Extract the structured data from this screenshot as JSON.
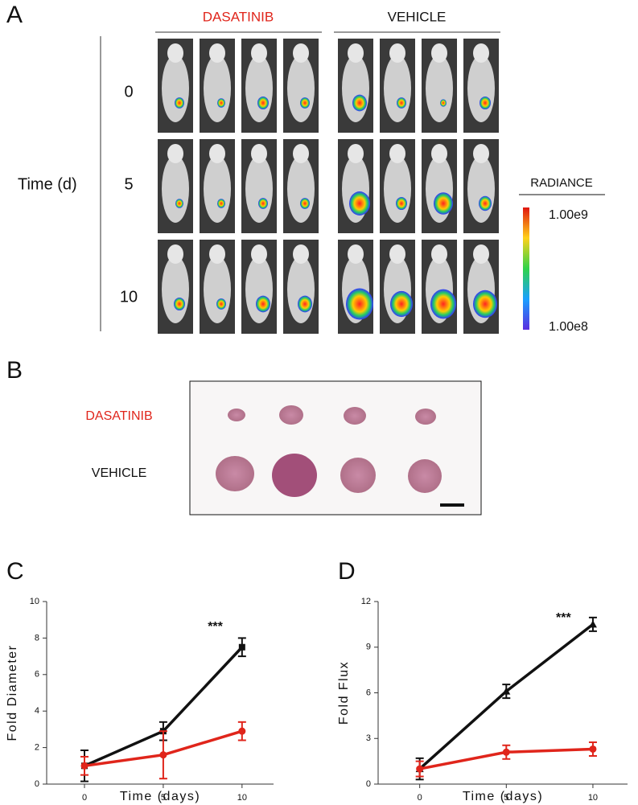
{
  "figure": {
    "panel_a": {
      "label": "A",
      "groups": [
        "DASATINIB",
        "VEHICLE"
      ],
      "times": [
        "0",
        "5",
        "10"
      ],
      "time_label": "Time (d)",
      "colorbar_title": "RADIANCE",
      "colorbar_max": "1.00e9",
      "colorbar_min": "1.00e8"
    },
    "panel_b": {
      "label": "B",
      "rows": [
        "DASATINIB",
        "VEHICLE"
      ]
    },
    "panel_labels": [
      "C",
      "D"
    ]
  },
  "chart_data": [
    {
      "type": "line",
      "x": [
        0,
        5,
        10
      ],
      "xlim": [
        -2.4,
        12
      ],
      "xticks": [
        0,
        5,
        10
      ],
      "ylim": [
        0,
        10
      ],
      "yticks": [
        0,
        2,
        4,
        6,
        8,
        10
      ],
      "xlabel": "Time (days)",
      "ylabel": "Fold Diameter",
      "annotation": "***",
      "annotation_at": [
        8.3,
        8.6
      ],
      "series": [
        {
          "color": "#111111",
          "marker": "square",
          "values": [
            1,
            2.9,
            7.5
          ],
          "errors": [
            0.85,
            0.5,
            0.5
          ]
        },
        {
          "color": "#e0251b",
          "marker": "circle",
          "values": [
            1,
            1.6,
            2.9
          ],
          "errors": [
            0.5,
            1.3,
            0.5
          ]
        }
      ]
    },
    {
      "type": "line",
      "x": [
        0,
        5,
        10
      ],
      "xlim": [
        -2.4,
        12
      ],
      "xticks": [
        0,
        5,
        10
      ],
      "ylim": [
        0,
        12
      ],
      "yticks": [
        0,
        3,
        6,
        9,
        12
      ],
      "xlabel": "Time (days)",
      "ylabel": "Fold Flux",
      "annotation": "***",
      "annotation_at": [
        8.3,
        10.9
      ],
      "series": [
        {
          "color": "#111111",
          "marker": "triangle",
          "values": [
            1,
            6.1,
            10.5
          ],
          "errors": [
            0.7,
            0.45,
            0.45
          ]
        },
        {
          "color": "#e0251b",
          "marker": "circle",
          "values": [
            1,
            2.1,
            2.3
          ],
          "errors": [
            0.5,
            0.45,
            0.45
          ]
        }
      ]
    }
  ]
}
